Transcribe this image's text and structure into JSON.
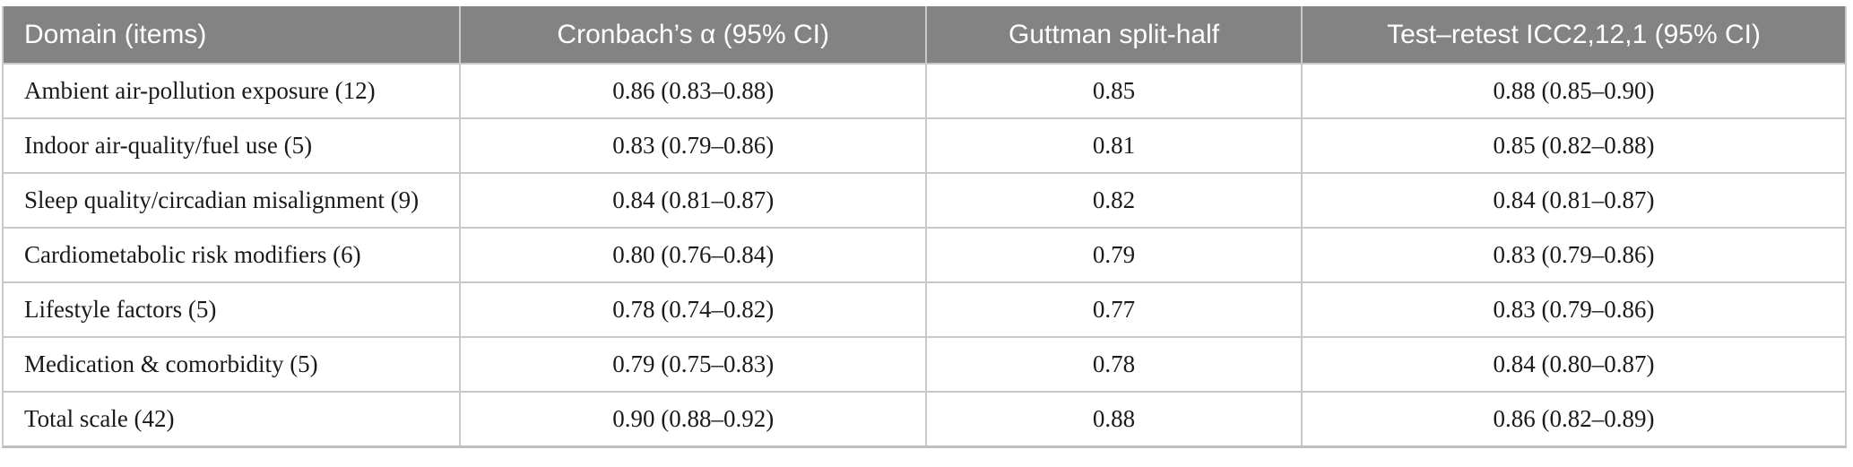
{
  "table": {
    "columns": [
      {
        "label": "Domain (items)"
      },
      {
        "label": "Cronbach’s α (95% CI)"
      },
      {
        "label": "Guttman split-half"
      },
      {
        "label": "Test–retest ICC2,12,1 (95% CI)"
      }
    ],
    "rows": [
      [
        "Ambient air-pollution exposure (12)",
        "0.86 (0.83–0.88)",
        "0.85",
        "0.88 (0.85–0.90)"
      ],
      [
        "Indoor air-quality/fuel use (5)",
        "0.83 (0.79–0.86)",
        "0.81",
        "0.85 (0.82–0.88)"
      ],
      [
        "Sleep quality/circadian misalignment (9)",
        "0.84 (0.81–0.87)",
        "0.82",
        "0.84 (0.81–0.87)"
      ],
      [
        "Cardiometabolic risk modifiers (6)",
        "0.80 (0.76–0.84)",
        "0.79",
        "0.83 (0.79–0.86)"
      ],
      [
        "Lifestyle factors (5)",
        "0.78 (0.74–0.82)",
        "0.77",
        "0.83 (0.79–0.86)"
      ],
      [
        "Medication & comorbidity (5)",
        "0.79 (0.75–0.83)",
        "0.78",
        "0.84 (0.80–0.87)"
      ],
      [
        "Total scale (42)",
        "0.90 (0.88–0.92)",
        "0.88",
        "0.86 (0.82–0.89)"
      ]
    ],
    "colors": {
      "header_bg": "#838383",
      "header_text": "#ffffff",
      "body_text": "#1a1a1a",
      "grid_line": "#c9c9c9",
      "bottom_rule": "#bdbdbd"
    }
  }
}
